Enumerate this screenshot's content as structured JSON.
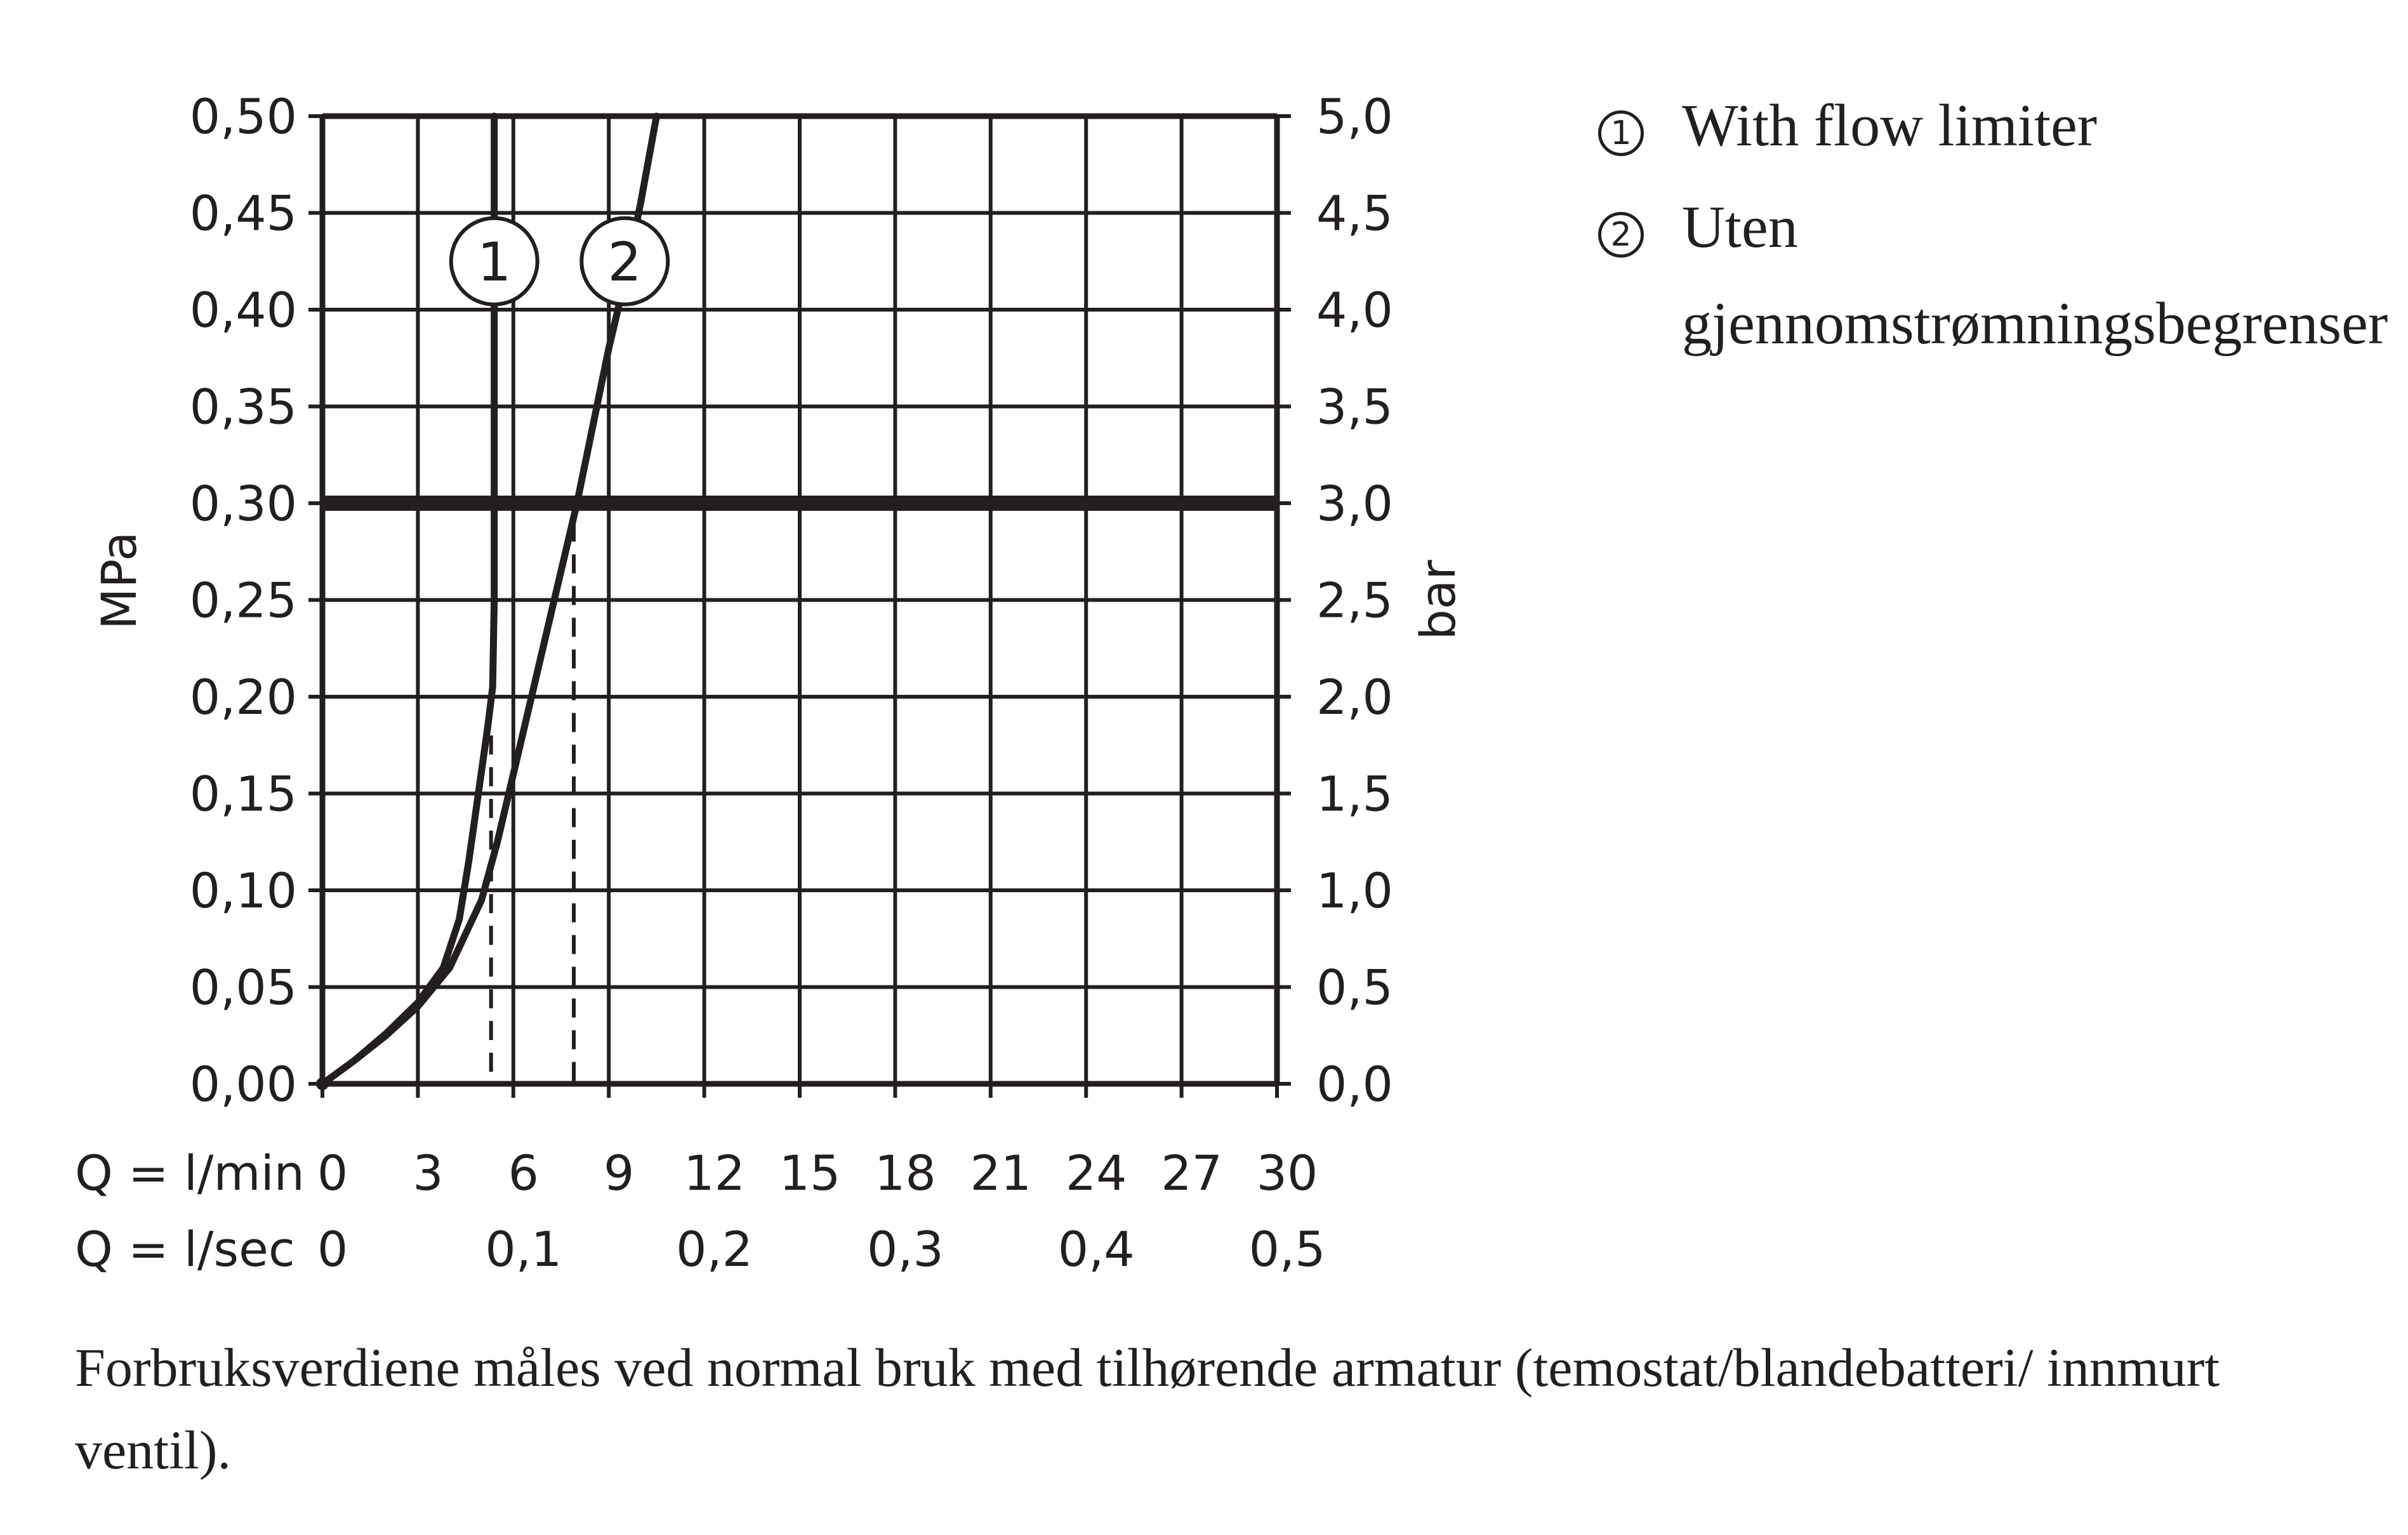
{
  "chart_data": {
    "type": "line",
    "left_axis": {
      "label": "MPa",
      "ticks": [
        "0,00",
        "0,05",
        "0,10",
        "0,15",
        "0,20",
        "0,25",
        "0,30",
        "0,35",
        "0,40",
        "0,45",
        "0,50"
      ],
      "range": [
        0,
        0.5
      ]
    },
    "right_axis": {
      "label": "bar",
      "ticks": [
        "0,0",
        "0,5",
        "1,0",
        "1,5",
        "2,0",
        "2,5",
        "3,0",
        "3,5",
        "4,0",
        "4,5",
        "5,0"
      ],
      "range": [
        0,
        5
      ]
    },
    "x_axis_lmin": {
      "label": "Q = l/min",
      "ticks": [
        {
          "v": 0,
          "t": "0"
        },
        {
          "v": 3,
          "t": "3"
        },
        {
          "v": 6,
          "t": "6"
        },
        {
          "v": 9,
          "t": "9"
        },
        {
          "v": 12,
          "t": "12"
        },
        {
          "v": 15,
          "t": "15"
        },
        {
          "v": 18,
          "t": "18"
        },
        {
          "v": 21,
          "t": "21"
        },
        {
          "v": 24,
          "t": "24"
        },
        {
          "v": 27,
          "t": "27"
        },
        {
          "v": 30,
          "t": "30"
        }
      ],
      "range": [
        0,
        30
      ]
    },
    "x_axis_lsec": {
      "label": "Q = l/sec",
      "ticks": [
        {
          "v": 0,
          "t": "0"
        },
        {
          "v": 6,
          "t": "0,1"
        },
        {
          "v": 12,
          "t": "0,2"
        },
        {
          "v": 18,
          "t": "0,3"
        },
        {
          "v": 24,
          "t": "0,4"
        },
        {
          "v": 30,
          "t": "0,5"
        }
      ]
    },
    "grid": true,
    "reference_line_mpa": 0.3,
    "series": [
      {
        "marker": "1",
        "marker_at": {
          "x": 5.4,
          "y": 0.425
        },
        "points": [
          [
            0,
            0
          ],
          [
            1,
            0.012
          ],
          [
            2,
            0.026
          ],
          [
            3,
            0.042
          ],
          [
            3.8,
            0.06
          ],
          [
            4.3,
            0.085
          ],
          [
            4.6,
            0.115
          ],
          [
            4.9,
            0.15
          ],
          [
            5.2,
            0.185
          ],
          [
            5.35,
            0.205
          ],
          [
            5.4,
            0.25
          ],
          [
            5.4,
            0.5
          ]
        ]
      },
      {
        "marker": "2",
        "marker_at": {
          "x": 9.5,
          "y": 0.425
        },
        "points": [
          [
            0,
            0
          ],
          [
            1,
            0.012
          ],
          [
            2,
            0.025
          ],
          [
            3,
            0.04
          ],
          [
            4,
            0.06
          ],
          [
            5,
            0.095
          ],
          [
            5.5,
            0.125
          ],
          [
            6,
            0.16
          ],
          [
            6.5,
            0.195
          ],
          [
            7,
            0.23
          ],
          [
            7.5,
            0.265
          ],
          [
            8,
            0.3
          ],
          [
            8.5,
            0.34
          ],
          [
            9,
            0.38
          ],
          [
            9.5,
            0.415
          ],
          [
            10,
            0.455
          ],
          [
            10.5,
            0.5
          ]
        ]
      }
    ],
    "dashed_lines": [
      {
        "x": 5.3,
        "y": 0.18
      },
      {
        "x": 7.9,
        "y": 0.29
      }
    ]
  },
  "legend": [
    {
      "num": "1",
      "text": "With flow limiter"
    },
    {
      "num": "2",
      "text": "Uten gjennomstrømningsbegrenser"
    }
  ],
  "footnote": "Forbruksverdiene måles ved normal bruk med tilhørende armatur (temostat/blandebatteri/ innmurt ventil)."
}
